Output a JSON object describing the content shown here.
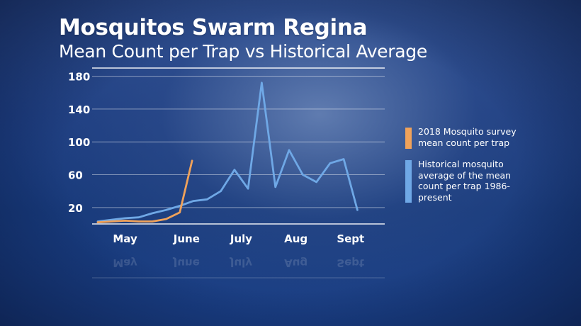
{
  "header": {
    "title": "Mosquitos Swarm Regina",
    "subtitle": "Mean Count per Trap vs Historical Average"
  },
  "colors": {
    "survey_2018": "#F0A25A",
    "historical": "#6FA8E6",
    "grid": "#FFFFFF",
    "text": "#FFFFFF"
  },
  "chart_data": {
    "type": "line",
    "title": "Mosquitos Swarm Regina",
    "subtitle": "Mean Count per Trap vs Historical Average",
    "xlabel": "",
    "ylabel": "",
    "ylim": [
      0,
      190
    ],
    "yticks": [
      20,
      60,
      100,
      140,
      180
    ],
    "x_ticks": [
      {
        "label": "May",
        "x": 2
      },
      {
        "label": "June",
        "x": 6.5
      },
      {
        "label": "July",
        "x": 10.5
      },
      {
        "label": "Aug",
        "x": 14.5
      },
      {
        "label": "Sept",
        "x": 18.5
      }
    ],
    "grid": "horizontal",
    "legend_position": "right",
    "series": [
      {
        "name": "2018 Mosquito survey mean count per trap",
        "legend_label": "2018 Mosquito survey mean count per trap",
        "color": "#F0A25A",
        "points": [
          [
            0,
            2
          ],
          [
            1,
            3
          ],
          [
            2,
            4
          ],
          [
            3,
            3
          ],
          [
            4,
            3
          ],
          [
            5,
            6
          ],
          [
            6,
            14
          ],
          [
            6.9,
            77
          ]
        ]
      },
      {
        "name": "Historical mosquito average of the mean count per trap 1986-present",
        "legend_label": "Historical mosquito average of the mean count per trap 1986-present",
        "color": "#6FA8E6",
        "points": [
          [
            0,
            3
          ],
          [
            1,
            5
          ],
          [
            2,
            7
          ],
          [
            3,
            8
          ],
          [
            4,
            13
          ],
          [
            5,
            17
          ],
          [
            6,
            22
          ],
          [
            7,
            28
          ],
          [
            8,
            30
          ],
          [
            9,
            40
          ],
          [
            10,
            66
          ],
          [
            11,
            43
          ],
          [
            12,
            172
          ],
          [
            13,
            45
          ],
          [
            14,
            90
          ],
          [
            15,
            60
          ],
          [
            16,
            51
          ],
          [
            17,
            74
          ],
          [
            18,
            79
          ],
          [
            19,
            17
          ]
        ]
      }
    ]
  }
}
